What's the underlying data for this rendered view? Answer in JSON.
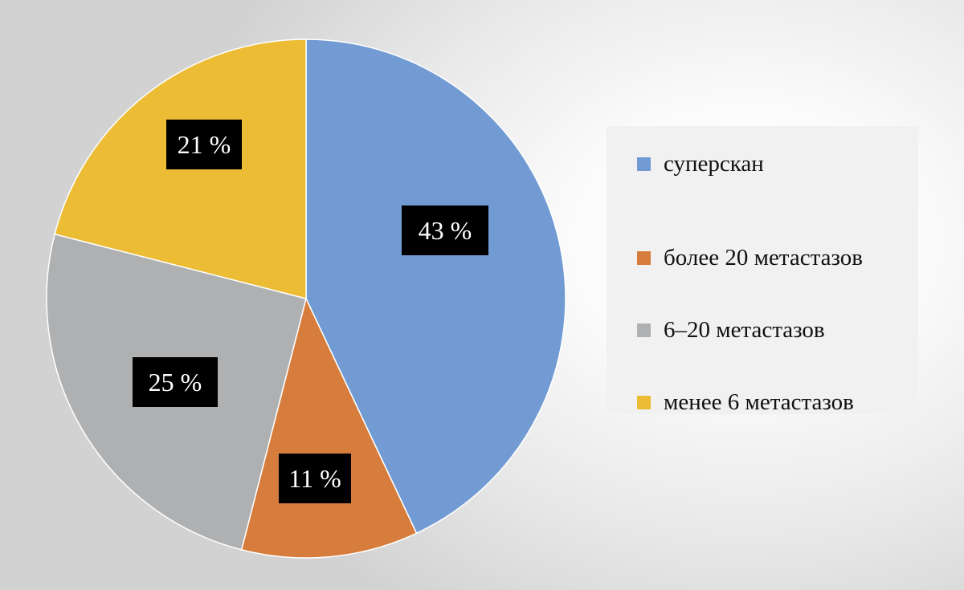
{
  "chart_data": {
    "type": "pie",
    "slices": [
      {
        "label": "суперскан",
        "value": 43,
        "display": "43 %",
        "color": "#729bd3"
      },
      {
        "label": "более 20 метастазов",
        "value": 11,
        "display": "11 %",
        "color": "#d67d3d"
      },
      {
        "label": "6–20 метастазов",
        "value": 25,
        "display": "25 %",
        "color": "#afb0b2"
      },
      {
        "label": "менее 6 метастазов",
        "value": 21,
        "display": "21 %",
        "color": "#ecbc35"
      }
    ],
    "legend_position": "right",
    "data_label_style": "white text on black box"
  }
}
